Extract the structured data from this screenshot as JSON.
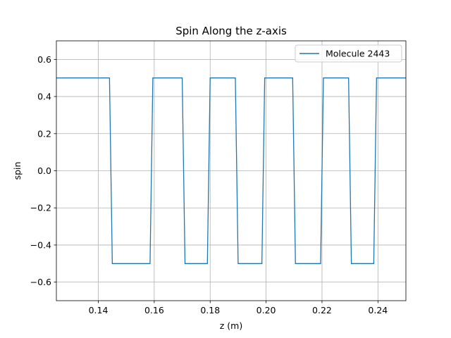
{
  "chart_data": {
    "type": "line",
    "title": "Spin Along the z-axis",
    "xlabel": "z (m)",
    "ylabel": "spin",
    "xlim": [
      0.125,
      0.25
    ],
    "ylim": [
      -0.7,
      0.7
    ],
    "xticks": [
      0.14,
      0.16,
      0.18,
      0.2,
      0.22,
      0.24
    ],
    "xtick_labels": [
      "0.14",
      "0.16",
      "0.18",
      "0.20",
      "0.22",
      "0.24"
    ],
    "yticks": [
      -0.6,
      -0.4,
      -0.2,
      0.0,
      0.2,
      0.4,
      0.6
    ],
    "ytick_labels": [
      "−0.6",
      "−0.4",
      "−0.2",
      "0.0",
      "0.2",
      "0.4",
      "0.6"
    ],
    "grid": true,
    "legend_position": "top-right",
    "series": [
      {
        "name": "Molecule 2443",
        "color": "#1f77b4",
        "x": [
          0.125,
          0.144,
          0.145,
          0.1585,
          0.1595,
          0.17,
          0.171,
          0.179,
          0.18,
          0.189,
          0.19,
          0.1985,
          0.1995,
          0.2095,
          0.2105,
          0.2195,
          0.2205,
          0.2295,
          0.2305,
          0.2385,
          0.2395,
          0.25
        ],
        "y": [
          0.5,
          0.5,
          -0.5,
          -0.5,
          0.5,
          0.5,
          -0.5,
          -0.5,
          0.5,
          0.5,
          -0.5,
          -0.5,
          0.5,
          0.5,
          -0.5,
          -0.5,
          0.5,
          0.5,
          -0.5,
          -0.5,
          0.5,
          0.5
        ]
      }
    ]
  }
}
